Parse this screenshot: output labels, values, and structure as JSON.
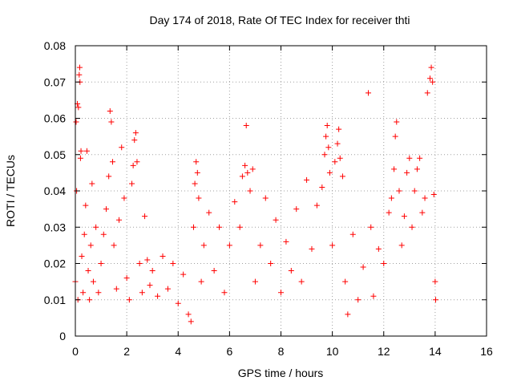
{
  "chart_data": {
    "type": "scatter",
    "title": "Day 174 of 2018, Rate Of TEC Index for receiver thti",
    "xlabel": "GPS time / hours",
    "ylabel": "ROTI / TECUs",
    "xlim": [
      0,
      16
    ],
    "ylim": [
      0,
      0.08
    ],
    "x_ticks": [
      "0",
      "2",
      "4",
      "6",
      "8",
      "10",
      "12",
      "14",
      "16"
    ],
    "y_ticks": [
      "0",
      "0.01",
      "0.02",
      "0.03",
      "0.04",
      "0.05",
      "0.06",
      "0.07",
      "0.08"
    ],
    "grid": true,
    "marker": "plus",
    "color": "#ff0000",
    "series": [
      {
        "name": "ROTI",
        "points": [
          [
            0.0,
            0.015
          ],
          [
            0.03,
            0.059
          ],
          [
            0.05,
            0.04
          ],
          [
            0.08,
            0.064
          ],
          [
            0.1,
            0.01
          ],
          [
            0.12,
            0.063
          ],
          [
            0.15,
            0.072
          ],
          [
            0.17,
            0.074
          ],
          [
            0.18,
            0.07
          ],
          [
            0.2,
            0.049
          ],
          [
            0.22,
            0.051
          ],
          [
            0.25,
            0.022
          ],
          [
            0.3,
            0.012
          ],
          [
            0.35,
            0.028
          ],
          [
            0.4,
            0.036
          ],
          [
            0.45,
            0.051
          ],
          [
            0.5,
            0.018
          ],
          [
            0.55,
            0.01
          ],
          [
            0.6,
            0.025
          ],
          [
            0.65,
            0.042
          ],
          [
            0.7,
            0.015
          ],
          [
            0.8,
            0.03
          ],
          [
            0.9,
            0.012
          ],
          [
            1.0,
            0.02
          ],
          [
            1.1,
            0.028
          ],
          [
            1.2,
            0.035
          ],
          [
            1.3,
            0.044
          ],
          [
            1.35,
            0.062
          ],
          [
            1.4,
            0.059
          ],
          [
            1.45,
            0.048
          ],
          [
            1.5,
            0.025
          ],
          [
            1.6,
            0.013
          ],
          [
            1.7,
            0.032
          ],
          [
            1.8,
            0.052
          ],
          [
            1.9,
            0.038
          ],
          [
            2.0,
            0.016
          ],
          [
            2.1,
            0.01
          ],
          [
            2.2,
            0.042
          ],
          [
            2.25,
            0.047
          ],
          [
            2.3,
            0.054
          ],
          [
            2.35,
            0.056
          ],
          [
            2.4,
            0.048
          ],
          [
            2.5,
            0.02
          ],
          [
            2.6,
            0.012
          ],
          [
            2.7,
            0.033
          ],
          [
            2.8,
            0.021
          ],
          [
            2.9,
            0.014
          ],
          [
            3.0,
            0.018
          ],
          [
            3.2,
            0.011
          ],
          [
            3.4,
            0.022
          ],
          [
            3.6,
            0.013
          ],
          [
            3.8,
            0.02
          ],
          [
            4.0,
            0.009
          ],
          [
            4.2,
            0.017
          ],
          [
            4.4,
            0.006
          ],
          [
            4.5,
            0.004
          ],
          [
            4.6,
            0.03
          ],
          [
            4.65,
            0.042
          ],
          [
            4.7,
            0.048
          ],
          [
            4.75,
            0.045
          ],
          [
            4.8,
            0.038
          ],
          [
            4.9,
            0.015
          ],
          [
            5.0,
            0.025
          ],
          [
            5.2,
            0.034
          ],
          [
            5.4,
            0.018
          ],
          [
            5.6,
            0.03
          ],
          [
            5.8,
            0.012
          ],
          [
            6.0,
            0.025
          ],
          [
            6.2,
            0.037
          ],
          [
            6.4,
            0.03
          ],
          [
            6.5,
            0.044
          ],
          [
            6.6,
            0.047
          ],
          [
            6.65,
            0.058
          ],
          [
            6.7,
            0.045
          ],
          [
            6.8,
            0.04
          ],
          [
            6.9,
            0.046
          ],
          [
            7.0,
            0.015
          ],
          [
            7.2,
            0.025
          ],
          [
            7.4,
            0.038
          ],
          [
            7.6,
            0.02
          ],
          [
            7.8,
            0.032
          ],
          [
            8.0,
            0.012
          ],
          [
            8.2,
            0.026
          ],
          [
            8.4,
            0.018
          ],
          [
            8.6,
            0.035
          ],
          [
            8.8,
            0.015
          ],
          [
            9.0,
            0.043
          ],
          [
            9.2,
            0.024
          ],
          [
            9.4,
            0.036
          ],
          [
            9.6,
            0.041
          ],
          [
            9.7,
            0.05
          ],
          [
            9.75,
            0.055
          ],
          [
            9.8,
            0.058
          ],
          [
            9.85,
            0.052
          ],
          [
            9.9,
            0.045
          ],
          [
            10.0,
            0.025
          ],
          [
            10.1,
            0.048
          ],
          [
            10.2,
            0.053
          ],
          [
            10.25,
            0.057
          ],
          [
            10.3,
            0.049
          ],
          [
            10.4,
            0.044
          ],
          [
            10.5,
            0.015
          ],
          [
            10.6,
            0.006
          ],
          [
            10.8,
            0.028
          ],
          [
            11.0,
            0.01
          ],
          [
            11.2,
            0.019
          ],
          [
            11.4,
            0.067
          ],
          [
            11.5,
            0.03
          ],
          [
            11.6,
            0.011
          ],
          [
            11.8,
            0.024
          ],
          [
            12.0,
            0.02
          ],
          [
            12.2,
            0.034
          ],
          [
            12.3,
            0.038
          ],
          [
            12.4,
            0.046
          ],
          [
            12.45,
            0.055
          ],
          [
            12.5,
            0.059
          ],
          [
            12.6,
            0.04
          ],
          [
            12.7,
            0.025
          ],
          [
            12.8,
            0.033
          ],
          [
            12.9,
            0.045
          ],
          [
            13.0,
            0.049
          ],
          [
            13.1,
            0.03
          ],
          [
            13.2,
            0.04
          ],
          [
            13.3,
            0.046
          ],
          [
            13.4,
            0.049
          ],
          [
            13.5,
            0.034
          ],
          [
            13.6,
            0.038
          ],
          [
            13.7,
            0.067
          ],
          [
            13.8,
            0.071
          ],
          [
            13.85,
            0.074
          ],
          [
            13.9,
            0.07
          ],
          [
            13.95,
            0.039
          ],
          [
            14.0,
            0.015
          ],
          [
            14.02,
            0.01
          ]
        ]
      }
    ]
  }
}
